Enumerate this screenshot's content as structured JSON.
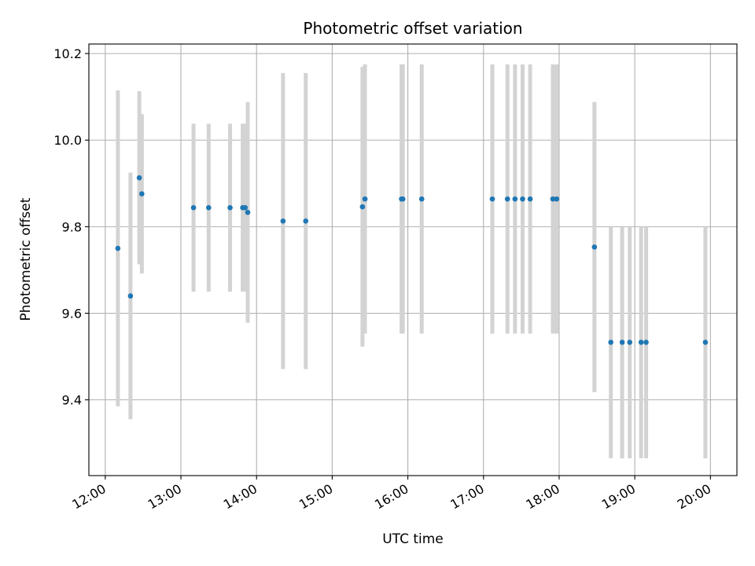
{
  "chart_data": {
    "type": "scatter",
    "title": "Photometric offset variation",
    "xlabel": "UTC time",
    "ylabel": "Photometric offset",
    "x_tick_labels": [
      "12:00",
      "13:00",
      "14:00",
      "15:00",
      "16:00",
      "17:00",
      "18:00",
      "19:00",
      "20:00"
    ],
    "y_ticks": [
      9.4,
      9.6,
      9.8,
      10.0,
      10.2
    ],
    "y_tick_labels": [
      "9.4",
      "9.6",
      "9.8",
      "10.0",
      "10.2"
    ],
    "xlim": [
      "11:47",
      "20:21"
    ],
    "ylim": [
      9.225,
      10.222
    ],
    "grid": true,
    "colors": {
      "point": "#1f77b4",
      "errorbar": "#d3d3d3",
      "grid": "#b0b0b0"
    },
    "points": [
      {
        "x": "12:10",
        "y": 9.75,
        "ymin": 9.385,
        "ymax": 10.115
      },
      {
        "x": "12:20",
        "y": 9.64,
        "ymin": 9.355,
        "ymax": 9.925
      },
      {
        "x": "12:27",
        "y": 9.913,
        "ymin": 9.713,
        "ymax": 10.113
      },
      {
        "x": "12:29",
        "y": 9.876,
        "ymin": 9.692,
        "ymax": 10.06
      },
      {
        "x": "13:10",
        "y": 9.844,
        "ymin": 9.65,
        "ymax": 10.038
      },
      {
        "x": "13:22",
        "y": 9.844,
        "ymin": 9.65,
        "ymax": 10.038
      },
      {
        "x": "13:39",
        "y": 9.844,
        "ymin": 9.65,
        "ymax": 10.038
      },
      {
        "x": "13:49",
        "y": 9.844,
        "ymin": 9.65,
        "ymax": 10.038
      },
      {
        "x": "13:51",
        "y": 9.844,
        "ymin": 9.65,
        "ymax": 10.038
      },
      {
        "x": "13:53",
        "y": 9.833,
        "ymin": 9.578,
        "ymax": 10.088
      },
      {
        "x": "14:21",
        "y": 9.813,
        "ymin": 9.471,
        "ymax": 10.155
      },
      {
        "x": "14:39",
        "y": 9.813,
        "ymin": 9.471,
        "ymax": 10.155
      },
      {
        "x": "15:24",
        "y": 9.846,
        "ymin": 9.523,
        "ymax": 10.169
      },
      {
        "x": "15:26",
        "y": 9.864,
        "ymin": 9.553,
        "ymax": 10.175
      },
      {
        "x": "15:55",
        "y": 9.864,
        "ymin": 9.553,
        "ymax": 10.175
      },
      {
        "x": "15:56",
        "y": 9.864,
        "ymin": 9.553,
        "ymax": 10.175
      },
      {
        "x": "16:11",
        "y": 9.864,
        "ymin": 9.553,
        "ymax": 10.175
      },
      {
        "x": "17:07",
        "y": 9.864,
        "ymin": 9.553,
        "ymax": 10.175
      },
      {
        "x": "17:19",
        "y": 9.864,
        "ymin": 9.553,
        "ymax": 10.175
      },
      {
        "x": "17:25",
        "y": 9.864,
        "ymin": 9.553,
        "ymax": 10.175
      },
      {
        "x": "17:31",
        "y": 9.864,
        "ymin": 9.553,
        "ymax": 10.175
      },
      {
        "x": "17:37",
        "y": 9.864,
        "ymin": 9.553,
        "ymax": 10.175
      },
      {
        "x": "17:55",
        "y": 9.864,
        "ymin": 9.553,
        "ymax": 10.175
      },
      {
        "x": "17:58",
        "y": 9.864,
        "ymin": 9.553,
        "ymax": 10.175
      },
      {
        "x": "18:28",
        "y": 9.753,
        "ymin": 9.418,
        "ymax": 10.088
      },
      {
        "x": "18:41",
        "y": 9.533,
        "ymin": 9.265,
        "ymax": 9.8
      },
      {
        "x": "18:50",
        "y": 9.533,
        "ymin": 9.265,
        "ymax": 9.8
      },
      {
        "x": "18:56",
        "y": 9.533,
        "ymin": 9.265,
        "ymax": 9.8
      },
      {
        "x": "19:05",
        "y": 9.533,
        "ymin": 9.265,
        "ymax": 9.8
      },
      {
        "x": "19:09",
        "y": 9.533,
        "ymin": 9.265,
        "ymax": 9.8
      },
      {
        "x": "19:56",
        "y": 9.533,
        "ymin": 9.265,
        "ymax": 9.8
      }
    ]
  }
}
